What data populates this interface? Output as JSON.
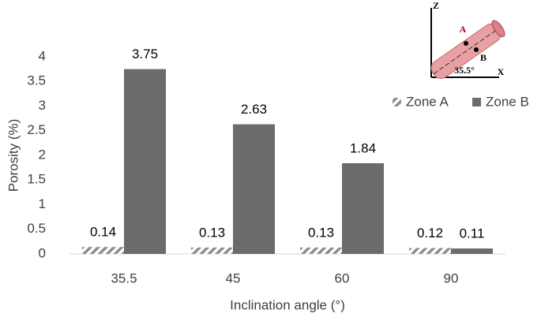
{
  "chart_data": {
    "type": "bar",
    "x_label": "Inclination angle (°)",
    "y_label": "Porosity (%)",
    "categories": [
      "35.5",
      "45",
      "60",
      "90"
    ],
    "series": [
      {
        "name": "Zone A",
        "color": "#8c8c8c",
        "pattern": "hatch",
        "values": [
          0.14,
          0.13,
          0.13,
          0.12
        ]
      },
      {
        "name": "Zone B",
        "color": "#6b6b6b",
        "values": [
          3.75,
          2.63,
          1.84,
          0.11
        ]
      }
    ],
    "ylim": [
      0,
      4
    ],
    "yticks": [
      0,
      0.5,
      1,
      1.5,
      2,
      2.5,
      3,
      3.5,
      4
    ],
    "grid": false,
    "legend": "top-right",
    "inset_labels": [
      "Z",
      "X",
      "A",
      "B",
      "35.5°"
    ]
  }
}
